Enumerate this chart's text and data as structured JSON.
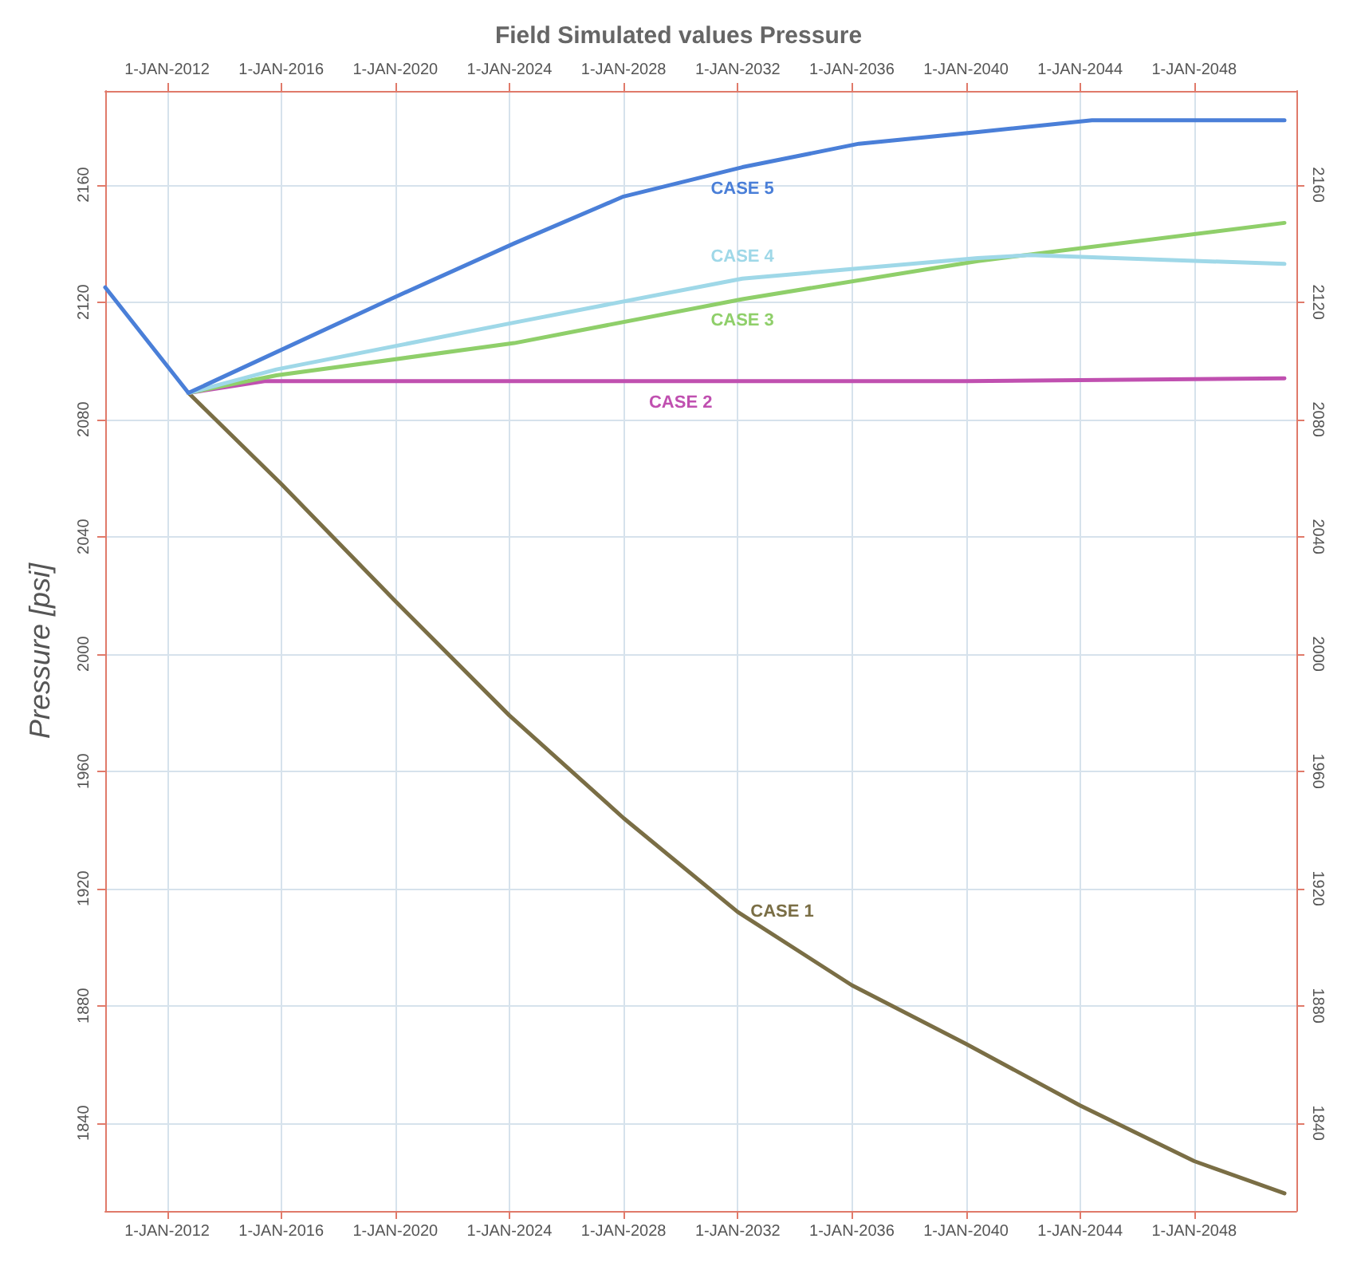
{
  "chart_data": {
    "type": "line",
    "title": "Field Simulated values Pressure",
    "ylabel": "Pressure [psi]",
    "xlim": [
      "2009-11",
      "2051-08"
    ],
    "x2lim": [
      "2009-11",
      "2051-08"
    ],
    "xticks": [
      {
        "value": "2012-01-01",
        "label": "1-JAN-2012"
      },
      {
        "value": "2016-01-01",
        "label": "1-JAN-2016"
      },
      {
        "value": "2020-01-01",
        "label": "1-JAN-2020"
      },
      {
        "value": "2024-01-01",
        "label": "1-JAN-2024"
      },
      {
        "value": "2028-01-01",
        "label": "1-JAN-2028"
      },
      {
        "value": "2032-01-01",
        "label": "1-JAN-2032"
      },
      {
        "value": "2036-01-01",
        "label": "1-JAN-2036"
      },
      {
        "value": "2040-01-01",
        "label": "1-JAN-2040"
      },
      {
        "value": "2044-01-01",
        "label": "1-JAN-2044"
      },
      {
        "value": "2048-01-01",
        "label": "1-JAN-2048"
      }
    ],
    "x2ticks": [
      {
        "value": "2012-01-01",
        "label": "1-JAN-2012"
      },
      {
        "value": "2016-01-01",
        "label": "1-JAN-2016"
      },
      {
        "value": "2020-01-01",
        "label": "1-JAN-2020"
      },
      {
        "value": "2024-01-01",
        "label": "1-JAN-2024"
      },
      {
        "value": "2028-01-01",
        "label": "1-JAN-2028"
      },
      {
        "value": "2032-01-01",
        "label": "1-JAN-2032"
      },
      {
        "value": "2036-01-01",
        "label": "1-JAN-2036"
      },
      {
        "value": "2040-01-01",
        "label": "1-JAN-2040"
      },
      {
        "value": "2044-01-01",
        "label": "1-JAN-2044"
      },
      {
        "value": "2048-01-01",
        "label": "1-JAN-2048"
      }
    ],
    "ylim": [
      1810,
      2192
    ],
    "yticks": [
      1840,
      1880,
      1920,
      1960,
      2000,
      2040,
      2080,
      2120,
      2160
    ],
    "y2lim": [
      1810,
      2192
    ],
    "y2ticks": [
      1840,
      1880,
      1920,
      1960,
      2000,
      2040,
      2080,
      2120,
      2160
    ],
    "grid": true,
    "legend": false,
    "marker": "none",
    "line_style": "solid",
    "series": [
      {
        "name": "CASE 1",
        "color": "#7a6e45",
        "x": [
          "2012-10",
          "2016-01",
          "2020-01",
          "2024-01",
          "2028-01",
          "2032-01",
          "2036-01",
          "2040-01",
          "2044-01",
          "2048-01",
          "2051-03"
        ],
        "values": [
          2089,
          2058,
          2018,
          1979,
          1944,
          1912,
          1887,
          1867,
          1846,
          1827,
          1816
        ]
      },
      {
        "name": "CASE 2",
        "color": "#c050b0",
        "x": [
          "2012-10",
          "2015-06",
          "2020-01",
          "2030-01",
          "2040-01",
          "2051-03"
        ],
        "values": [
          2089,
          2093,
          2093,
          2093,
          2093,
          2094
        ]
      },
      {
        "name": "CASE 3",
        "color": "#8fcf6a",
        "x": [
          "2012-10",
          "2015-11",
          "2024-03",
          "2032-03",
          "2040-06",
          "2051-03"
        ],
        "values": [
          2089,
          2095,
          2106,
          2121,
          2134,
          2147
        ]
      },
      {
        "name": "CASE 4",
        "color": "#9fd8e8",
        "x": [
          "2012-10",
          "2015-11",
          "2024-03",
          "2032-03",
          "2040-06",
          "2042-04",
          "2051-03"
        ],
        "values": [
          2089,
          2097,
          2113,
          2128,
          2135,
          2136,
          2133
        ]
      },
      {
        "name": "CASE 5",
        "color": "#4a7fd8",
        "x": [
          "2009-11",
          "2012-10",
          "2019-11",
          "2024-03",
          "2028-01",
          "2032-03",
          "2036-04",
          "2040-06",
          "2044-06",
          "2051-03"
        ],
        "values": [
          2125,
          2089,
          2121,
          2140,
          2156,
          2166,
          2174,
          2178,
          2182,
          2182
        ]
      }
    ]
  }
}
